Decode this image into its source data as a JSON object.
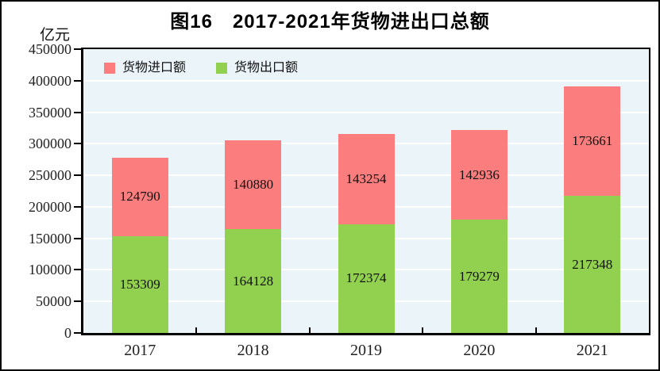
{
  "title": "图16　2017-2021年货物进出口总额",
  "unit_label": "亿元",
  "colors": {
    "imports": "#FB7D7D",
    "exports": "#92D050",
    "plot_background": "#EBF4F8",
    "gridline": "#FFFFFF",
    "axis": "#000000",
    "page_background": "#FFFFFF",
    "text": "#111111"
  },
  "chart_data": {
    "type": "bar",
    "stacked": true,
    "title": "图16　2017-2021年货物进出口总额",
    "ylabel": "亿元",
    "xlabel": "",
    "categories": [
      "2017",
      "2018",
      "2019",
      "2020",
      "2021"
    ],
    "series": [
      {
        "key": "exports",
        "name": "货物出口额",
        "color": "#92D050",
        "values": [
          153309,
          164128,
          172374,
          179279,
          217348
        ]
      },
      {
        "key": "imports",
        "name": "货物进口额",
        "color": "#FB7D7D",
        "values": [
          124790,
          140880,
          143254,
          142936,
          173661
        ]
      }
    ],
    "legend": [
      {
        "key": "imports",
        "label": "货物进口额",
        "color": "#FB7D7D"
      },
      {
        "key": "exports",
        "label": "货物出口额",
        "color": "#92D050"
      }
    ],
    "legend_position": "top-left-inside",
    "ylim": [
      0,
      450000
    ],
    "ytick_step": 50000,
    "ytick_labels": [
      "0",
      "50000",
      "100000",
      "150000",
      "200000",
      "250000",
      "300000",
      "350000",
      "400000",
      "450000"
    ],
    "grid": true,
    "gridline_color": "#FFFFFF",
    "plot_background": "#EBF4F8"
  }
}
